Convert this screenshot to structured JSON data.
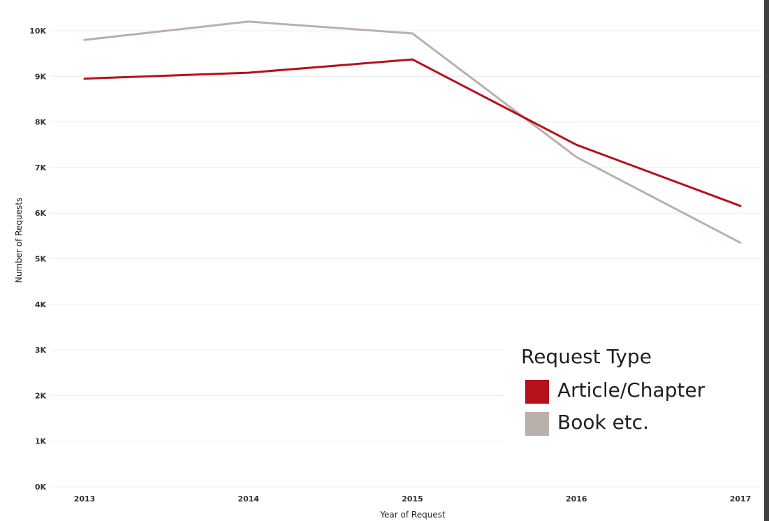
{
  "colors": {
    "article": "#b5121b",
    "book": "#bab0ab",
    "grid": "#ececec",
    "right_edge": "#3f3f3f"
  },
  "chart_data": {
    "type": "line",
    "title": "",
    "xlabel": "Year of Request",
    "ylabel": "Number of Requests",
    "x": [
      "2013",
      "2014",
      "2015",
      "2016",
      "2017"
    ],
    "y_ticks": [
      "0K",
      "1K",
      "2K",
      "3K",
      "4K",
      "5K",
      "6K",
      "7K",
      "8K",
      "9K",
      "10K"
    ],
    "ylim": [
      0,
      10000
    ],
    "grid": "horizontal",
    "legend_position": "bottom-right",
    "legend_title": "Request Type",
    "series": [
      {
        "name": "Article/Chapter",
        "color": "#b5121b",
        "values": [
          8950,
          9080,
          9370,
          7500,
          6160
        ]
      },
      {
        "name": "Book etc.",
        "color": "#bab0ab",
        "values": [
          9800,
          10200,
          9940,
          7230,
          5350
        ]
      }
    ]
  }
}
